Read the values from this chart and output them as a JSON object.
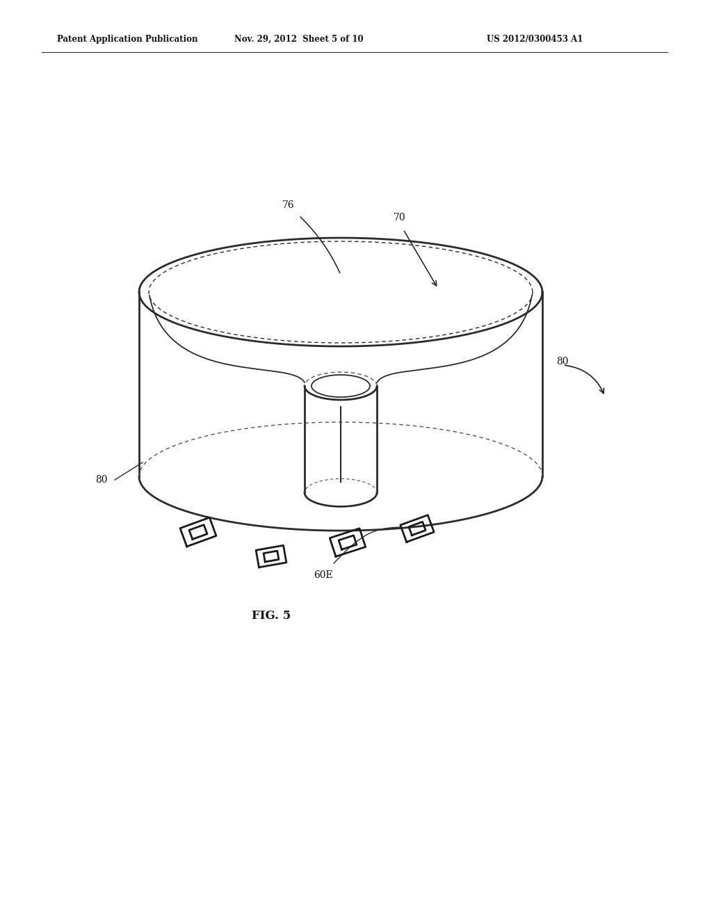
{
  "bg_color": "#ffffff",
  "header_left": "Patent Application Publication",
  "header_mid": "Nov. 29, 2012  Sheet 5 of 10",
  "header_right": "US 2012/0300453 A1",
  "fig_label": "FIG. 5",
  "line_color": "#2a2a2a",
  "line_color_light": "#555555"
}
